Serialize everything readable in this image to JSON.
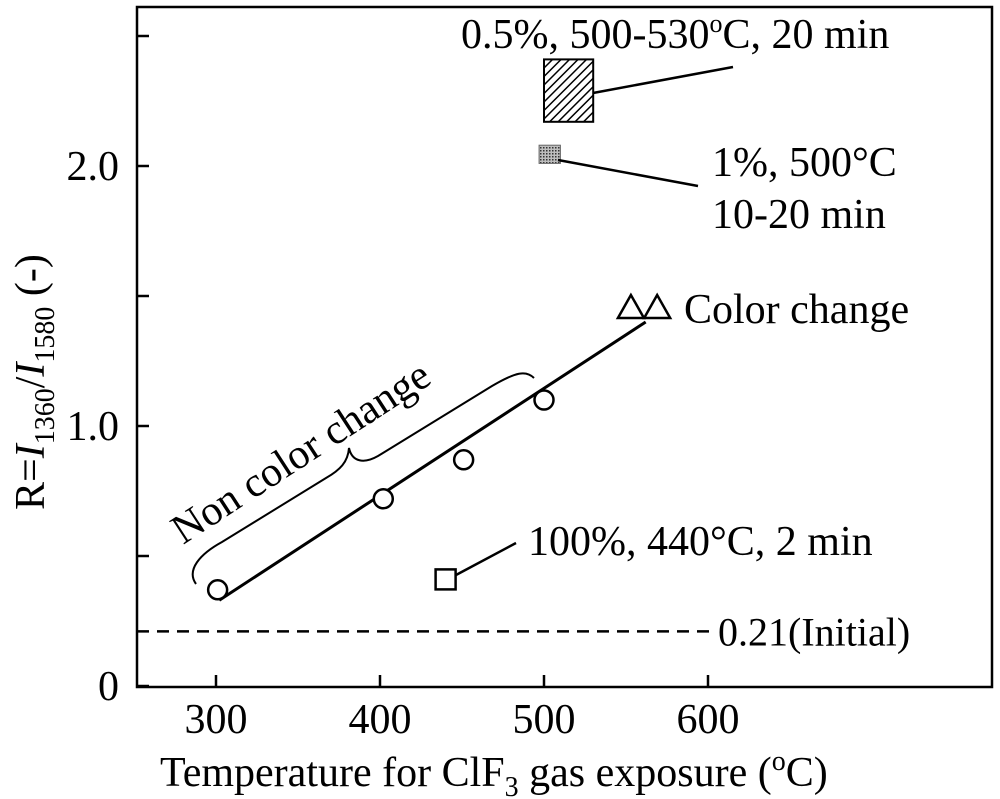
{
  "chart_data": {
    "type": "scatter",
    "xlabel": {
      "pre": "Temperature for ClF",
      "sub": "3",
      "post": " gas exposure (",
      "sup": "o",
      "end": "C)"
    },
    "ylabel": {
      "pre": "R=",
      "i1": "I",
      "sub1": "1360",
      "slash": "/",
      "i2": "I",
      "sub2": "1580",
      "post": " (-)"
    },
    "xlim": [
      250,
      700
    ],
    "ylim": [
      0,
      2.6
    ],
    "xticks": [
      {
        "v": 300,
        "label": "300"
      },
      {
        "v": 400,
        "label": "400"
      },
      {
        "v": 500,
        "label": "500"
      },
      {
        "v": 600,
        "label": "600"
      }
    ],
    "yticks": [
      {
        "v": 0,
        "label": "0"
      },
      {
        "v": 0.5,
        "label": ""
      },
      {
        "v": 1.0,
        "label": "1.0"
      },
      {
        "v": 1.5,
        "label": ""
      },
      {
        "v": 2.0,
        "label": "2.0"
      },
      {
        "v": 2.5,
        "label": ""
      }
    ],
    "grid": false,
    "series": [
      {
        "marker": "circle",
        "points": [
          {
            "x": 301,
            "y": 0.37
          },
          {
            "x": 402,
            "y": 0.72
          },
          {
            "x": 451,
            "y": 0.87
          },
          {
            "x": 500,
            "y": 1.1
          }
        ]
      },
      {
        "marker": "triangle",
        "points": [
          {
            "x": 553,
            "y": 1.45
          },
          {
            "x": 569,
            "y": 1.45
          }
        ]
      },
      {
        "marker": "square",
        "points": [
          {
            "x": 440,
            "y": 0.41
          }
        ]
      }
    ],
    "fit_line": {
      "x": [
        302,
        562
      ],
      "y": [
        0.33,
        1.4
      ]
    },
    "rectangles": [
      {
        "x0": 500,
        "x1": 530,
        "y0": 2.17,
        "y1": 2.41,
        "fill": "hatch",
        "label": "0.5%, 500-530",
        "label_sup": "o",
        "label_post": "C, 20 min"
      },
      {
        "x0": 497,
        "x1": 510,
        "y0": 2.01,
        "y1": 2.08,
        "fill": "dots",
        "label_line1": "1%, 500°C",
        "label_line2": "10-20 min"
      }
    ],
    "reference_line": {
      "y": 0.21,
      "label": "0.21(Initial)"
    },
    "annotations": {
      "color_change": "Color change",
      "non_color_change": "Non color change",
      "square_label": "100%, 440°C, 2 min"
    }
  }
}
